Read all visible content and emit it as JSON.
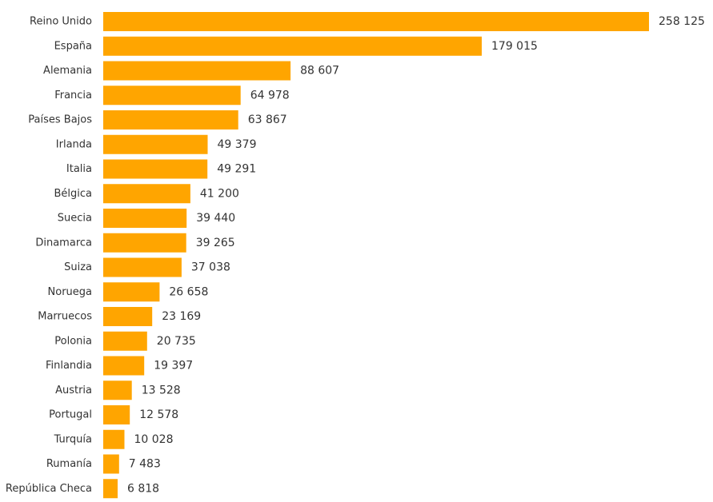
{
  "chart_data": {
    "type": "bar",
    "orientation": "horizontal",
    "title": "",
    "xlabel": "",
    "ylabel": "",
    "bar_color": "#FFA500",
    "grid": false,
    "legend": "none",
    "xlim": [
      0,
      258125
    ],
    "categories": [
      "Reino Unido",
      "España",
      "Alemania",
      "Francia",
      "Países Bajos",
      "Irlanda",
      "Italia",
      "Bélgica",
      "Suecia",
      "Dinamarca",
      "Suiza",
      "Noruega",
      "Marruecos",
      "Polonia",
      "Finlandia",
      "Austria",
      "Portugal",
      "Turquía",
      "Rumanía",
      "República Checa"
    ],
    "values": [
      258125,
      179015,
      88607,
      64978,
      63867,
      49379,
      49291,
      41200,
      39440,
      39265,
      37038,
      26658,
      23169,
      20735,
      19397,
      13528,
      12578,
      10028,
      7483,
      6818
    ],
    "value_labels": [
      "258 125",
      "179 015",
      "88 607",
      "64 978",
      "63 867",
      "49 379",
      "49 291",
      "41 200",
      "39 440",
      "39 265",
      "37 038",
      "26 658",
      "23 169",
      "20 735",
      "19 397",
      "13 528",
      "12 578",
      "10 028",
      "7 483",
      "6 818"
    ]
  }
}
